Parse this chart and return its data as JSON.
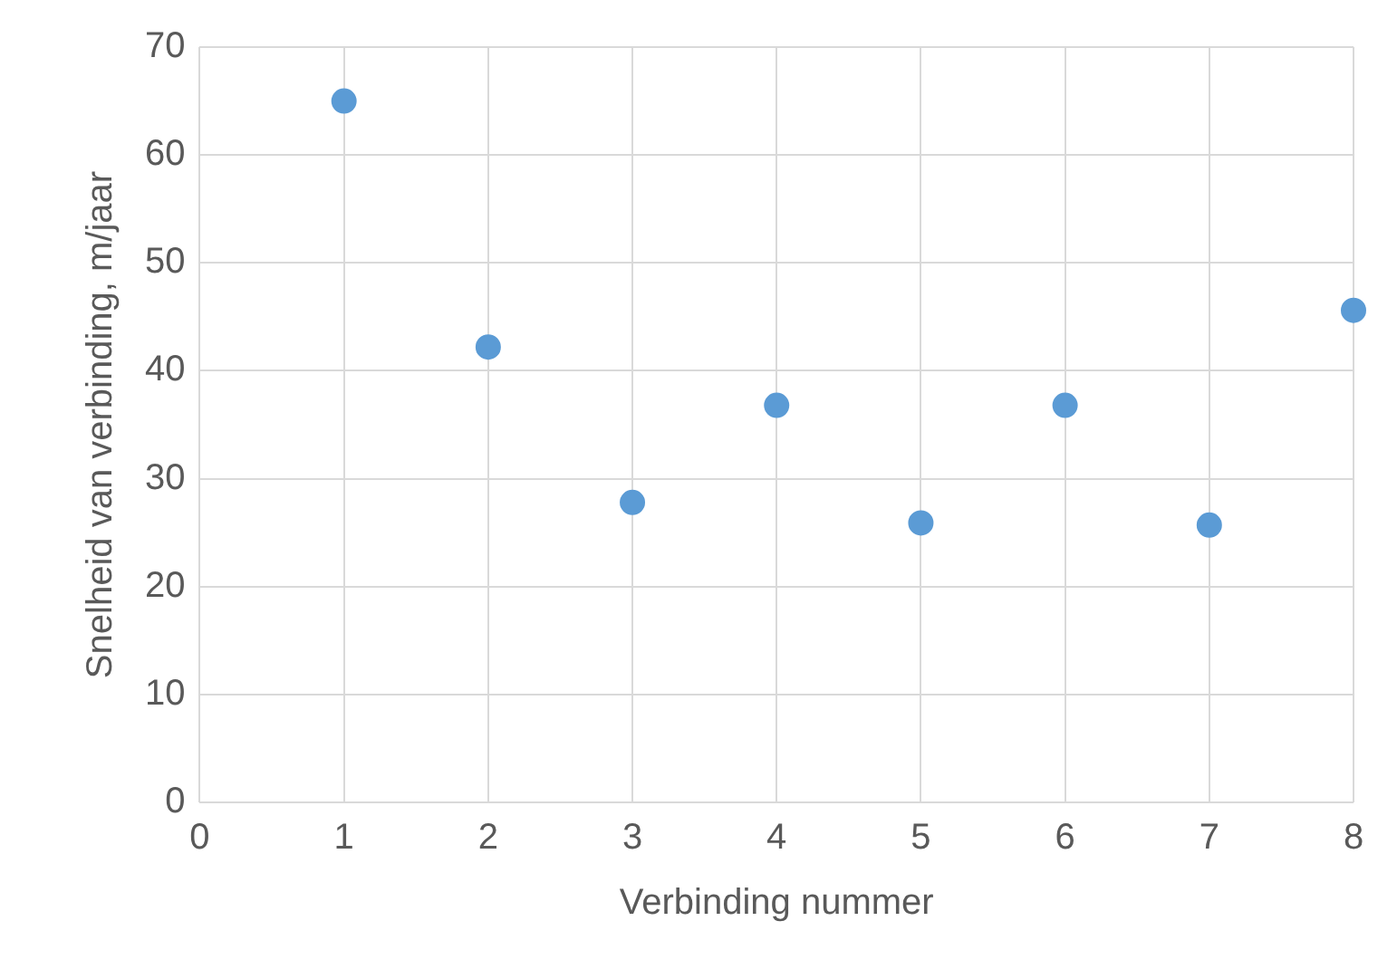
{
  "chart_data": {
    "type": "scatter",
    "xlabel": "Verbinding nummer",
    "ylabel": "Snelheid van verbinding, m/jaar",
    "x": [
      1,
      2,
      3,
      4,
      5,
      6,
      7,
      8
    ],
    "series": [
      {
        "color": "#5b9bd5",
        "values": [
          65,
          42.2,
          27.8,
          36.8,
          25.9,
          36.8,
          25.7,
          45.6
        ]
      }
    ],
    "xlim": [
      0,
      8
    ],
    "xticks": [
      0,
      1,
      2,
      3,
      4,
      5,
      6,
      7,
      8
    ],
    "ylim": [
      0,
      70
    ],
    "yticks": [
      0,
      10,
      20,
      30,
      40,
      50,
      60,
      70
    ],
    "grid": true,
    "legend": false,
    "marker": "circle"
  }
}
